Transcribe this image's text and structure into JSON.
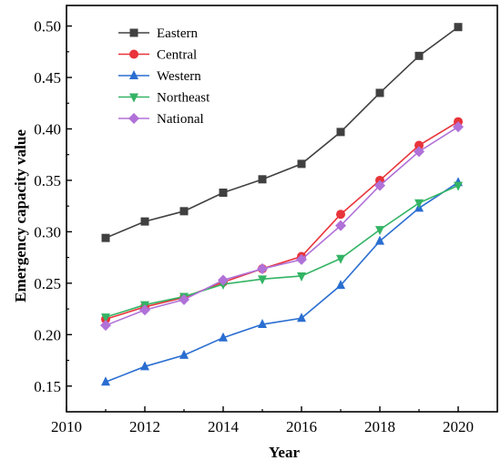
{
  "chart_data": {
    "type": "line",
    "xlabel": "Year",
    "ylabel": "Emergency capacity value",
    "xlim": [
      2010,
      2021
    ],
    "ylim": [
      0.125,
      0.52
    ],
    "xticks": [
      2010,
      2012,
      2014,
      2016,
      2018,
      2020
    ],
    "xtick_labels": [
      "2010",
      "2012",
      "2014",
      "2016",
      "2018",
      "2020"
    ],
    "yticks": [
      0.15,
      0.2,
      0.25,
      0.3,
      0.35,
      0.4,
      0.45,
      0.5
    ],
    "ytick_labels": [
      "0.15",
      "0.20",
      "0.25",
      "0.30",
      "0.35",
      "0.40",
      "0.45",
      "0.50"
    ],
    "grid": false,
    "legend_position": "top-left",
    "x": [
      2011,
      2012,
      2013,
      2014,
      2015,
      2016,
      2017,
      2018,
      2019,
      2020
    ],
    "series": [
      {
        "name": "Eastern",
        "color": "#404040",
        "marker": "square",
        "values": [
          0.294,
          0.31,
          0.32,
          0.338,
          0.351,
          0.366,
          0.397,
          0.435,
          0.471,
          0.499
        ]
      },
      {
        "name": "Central",
        "color": "#e8343a",
        "marker": "circle",
        "values": [
          0.215,
          0.227,
          0.236,
          0.251,
          0.264,
          0.276,
          0.317,
          0.35,
          0.384,
          0.407
        ]
      },
      {
        "name": "Western",
        "color": "#2a6ed1",
        "marker": "triangle-up",
        "values": [
          0.154,
          0.169,
          0.18,
          0.197,
          0.21,
          0.216,
          0.248,
          0.291,
          0.323,
          0.348
        ]
      },
      {
        "name": "Northeast",
        "color": "#33b464",
        "marker": "triangle-down",
        "values": [
          0.217,
          0.229,
          0.237,
          0.249,
          0.254,
          0.257,
          0.274,
          0.302,
          0.328,
          0.345
        ]
      },
      {
        "name": "National",
        "color": "#b071d8",
        "marker": "diamond",
        "values": [
          0.209,
          0.224,
          0.234,
          0.253,
          0.264,
          0.273,
          0.306,
          0.345,
          0.378,
          0.402
        ]
      }
    ]
  }
}
